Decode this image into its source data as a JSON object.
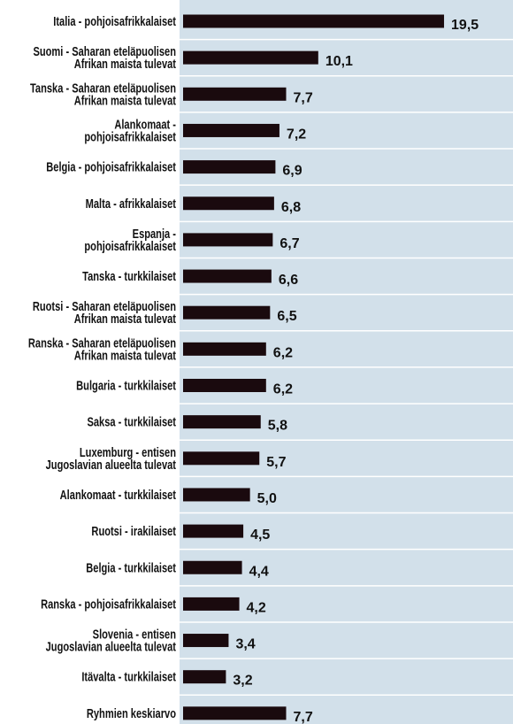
{
  "chart_data": {
    "type": "bar",
    "orientation": "horizontal",
    "color": "#1a0a0e",
    "categories": [
      "Italia - pohjoisafrikkalaiset",
      "Suomi - Saharan eteläpuolisen\nAfrikan maista tulevat",
      "Tanska - Saharan eteläpuolisen\nAfrikan maista tulevat",
      "Alankomaat -\npohjoisafrikkalaiset",
      "Belgia - pohjoisafrikkalaiset",
      "Malta - afrikkalaiset",
      "Espanja -\npohjoisafrikkalaiset",
      "Tanska - turkkilaiset",
      "Ruotsi - Saharan eteläpuolisen\nAfrikan maista tulevat",
      "Ranska - Saharan eteläpuolisen\nAfrikan maista tulevat",
      "Bulgaria - turkkilaiset",
      "Saksa - turkkilaiset",
      "Luxemburg - entisen\nJugoslavian alueelta tulevat",
      "Alankomaat - turkkilaiset",
      "Ruotsi - irakilaiset",
      "Belgia - turkkilaiset",
      "Ranska - pohjoisafrikkalaiset",
      "Slovenia - entisen\nJugoslavian alueelta tulevat",
      "Itävalta - turkkilaiset",
      "Ryhmien keskiarvo"
    ],
    "values": [
      19.5,
      10.1,
      7.7,
      7.2,
      6.9,
      6.8,
      6.7,
      6.6,
      6.5,
      6.2,
      6.2,
      5.8,
      5.7,
      5.0,
      4.5,
      4.4,
      4.2,
      3.4,
      3.2,
      7.7
    ],
    "value_labels": [
      "19,5",
      "10,1",
      "7,7",
      "7,2",
      "6,9",
      "6,8",
      "6,7",
      "6,6",
      "6,5",
      "6,2",
      "6,2",
      "5,8",
      "5,7",
      "5,0",
      "4,5",
      "4,4",
      "4,2",
      "3,4",
      "3,2",
      "7,7"
    ]
  }
}
